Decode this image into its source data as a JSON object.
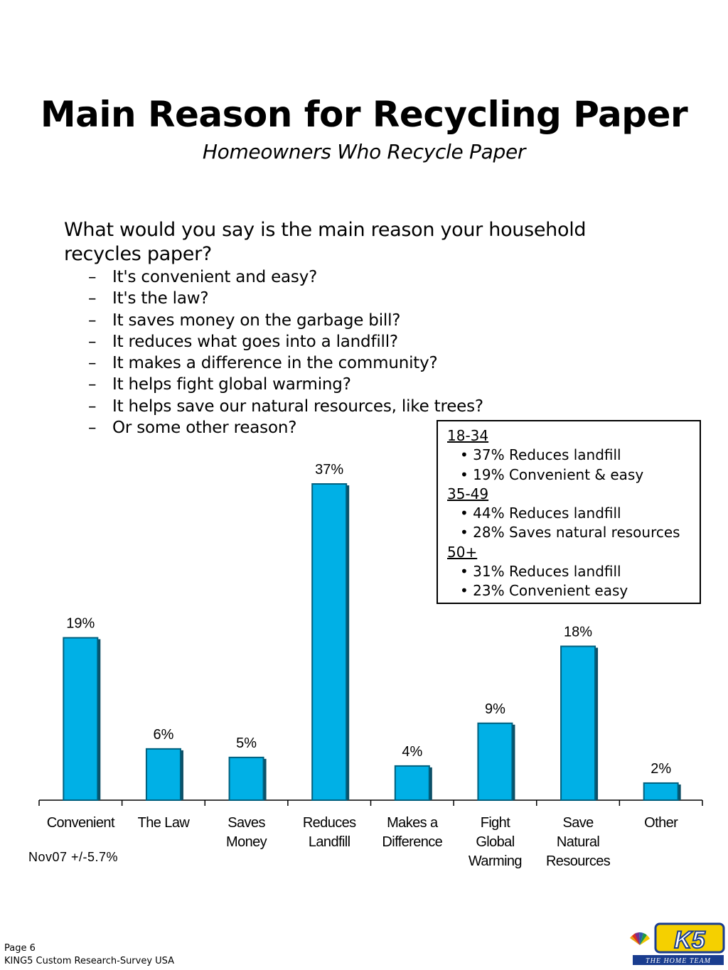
{
  "header": {
    "title": "Main Reason for Recycling Paper",
    "subtitle": "Homeowners Who Recycle Paper"
  },
  "question": {
    "text": "What would you say is the main reason your household recycles paper?",
    "options": [
      "It's convenient and easy?",
      "It's the law?",
      "It saves money on the garbage bill?",
      "It reduces what goes into a landfill?",
      "It makes a difference in the community?",
      "It helps fight global warming?",
      "It helps save our natural resources, like trees?",
      "Or some other reason?"
    ]
  },
  "callout": {
    "groups": [
      {
        "label": "18-34",
        "items": [
          "37% Reduces landfill",
          "19% Convenient & easy"
        ]
      },
      {
        "label": "35-49",
        "items": [
          "44% Reduces landfill",
          "28% Saves natural resources"
        ]
      },
      {
        "label": "50+",
        "items": [
          "31% Reduces landfill",
          "23% Convenient easy"
        ]
      }
    ]
  },
  "chart_data": {
    "type": "bar",
    "categories": [
      [
        "Convenient"
      ],
      [
        "The Law"
      ],
      [
        "Saves",
        "Money"
      ],
      [
        "Reduces",
        "Landfill"
      ],
      [
        "Makes a",
        "Difference"
      ],
      [
        "Fight",
        "Global",
        "Warming"
      ],
      [
        "Save",
        "Natural",
        "Resources"
      ],
      [
        "Other"
      ]
    ],
    "values": [
      19,
      6,
      5,
      37,
      4,
      9,
      18,
      2
    ],
    "data_labels": [
      "19%",
      "6%",
      "5%",
      "37%",
      "4%",
      "9%",
      "18%",
      "2%"
    ],
    "unit": "%",
    "ylim": [
      0,
      37
    ],
    "grid": false,
    "legend": "none",
    "bar_color": "#00b0e6",
    "bar_edge_color": "#00607e"
  },
  "note": "Nov07 +/-5.7%",
  "footer": {
    "page": "Page 6",
    "source": "KING5 Custom Research-Survey USA"
  },
  "logo": {
    "icon": "nbc-peacock-king5-logo",
    "text": "K5",
    "tagline": "THE HOME TEAM"
  }
}
